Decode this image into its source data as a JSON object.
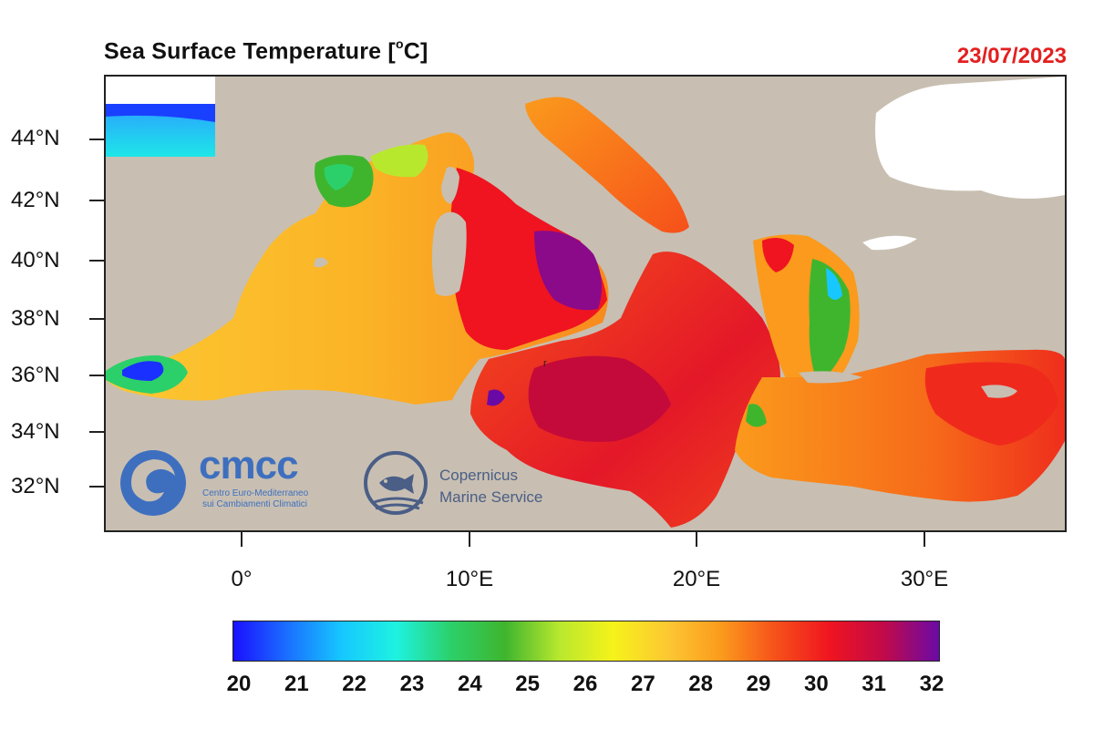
{
  "title": {
    "text": "Sea Surface Temperature [",
    "degree": "o",
    "unit_suffix": "C]"
  },
  "date": {
    "text": "23/07/2023",
    "color": "#e32020"
  },
  "map": {
    "land_color": "#c8bfb2",
    "no_data_color": "#ffffff",
    "stray_char": "r",
    "latitude_labels": [
      "44°N",
      "42°N",
      "40°N",
      "38°N",
      "36°N",
      "34°N",
      "32°N"
    ],
    "longitude_labels": [
      "0°",
      "10°E",
      "20°E",
      "30°E"
    ]
  },
  "colorbar": {
    "min": 20,
    "max": 32,
    "labels": [
      "20",
      "21",
      "22",
      "23",
      "24",
      "25",
      "26",
      "27",
      "28",
      "29",
      "30",
      "31",
      "32"
    ],
    "colors": [
      "#1a10ff",
      "#1a70ff",
      "#16c8ff",
      "#1ef2e0",
      "#2cd06a",
      "#3fb52e",
      "#b8e82e",
      "#f6f21a",
      "#fcc832",
      "#fb9a1c",
      "#f6501a",
      "#ef1420",
      "#c00a4a",
      "#6a0aa6"
    ]
  },
  "logos": {
    "cmcc": {
      "word": "cmcc",
      "line1": "Centro Euro-Mediterraneo",
      "line2": "sui Cambiamenti Climatici",
      "color": "#3e6fbf"
    },
    "copernicus": {
      "line1": "Copernicus",
      "line2": "Marine Service",
      "color": "#4a5e86"
    }
  }
}
